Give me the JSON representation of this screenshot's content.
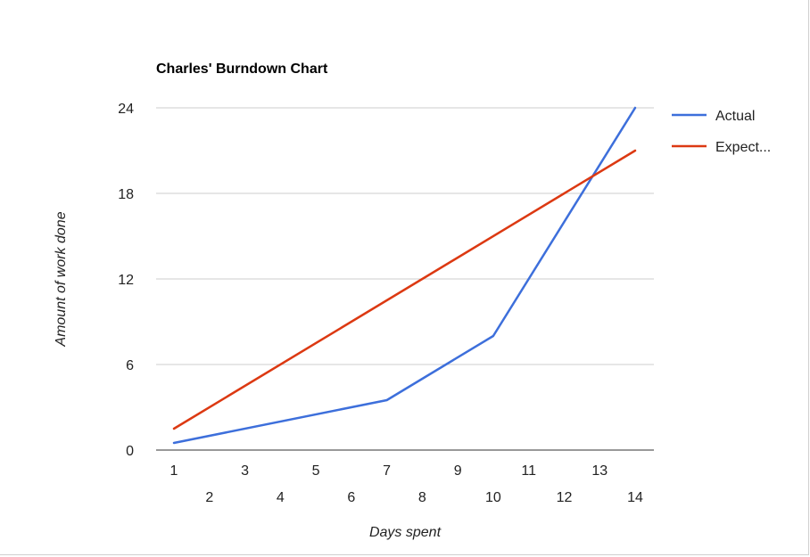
{
  "chart_data": {
    "type": "line",
    "title": "Charles' Burndown Chart",
    "xlabel": "Days spent",
    "ylabel": "Amount of work done",
    "x": [
      1,
      2,
      3,
      4,
      5,
      6,
      7,
      8,
      9,
      10,
      11,
      12,
      13,
      14
    ],
    "xlim": [
      1,
      14
    ],
    "ylim": [
      0,
      24
    ],
    "y_ticks": [
      0,
      6,
      12,
      18,
      24
    ],
    "grid": true,
    "legend_position": "right",
    "series": [
      {
        "name": "Actual",
        "color": "#3d6fdb",
        "points": [
          [
            1,
            0.5
          ],
          [
            7,
            3.5
          ],
          [
            10,
            8
          ],
          [
            14,
            24
          ]
        ]
      },
      {
        "name": "Expect...",
        "color": "#dc3912",
        "points": [
          [
            1,
            1.5
          ],
          [
            14,
            21
          ]
        ]
      }
    ]
  }
}
